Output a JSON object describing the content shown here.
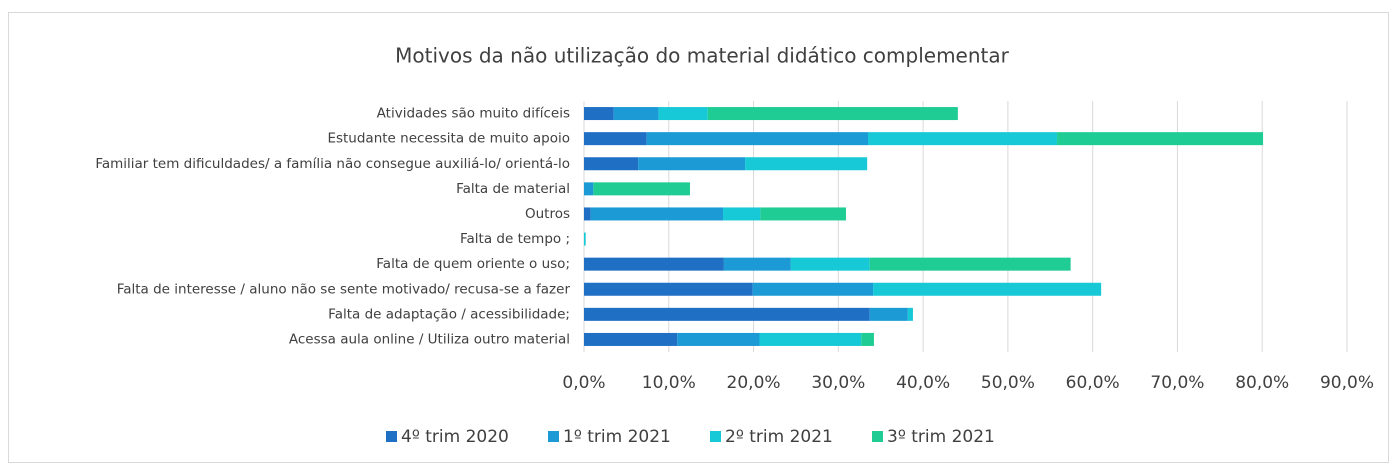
{
  "chart_data": {
    "type": "stacked-bar-horizontal",
    "title": "Motivos da não utilização do material didático complementar",
    "categories": [
      "Atividades são muito difíceis",
      "Estudante necessita de muito apoio",
      "Familiar tem dificuldades/ a família não consegue  auxiliá-lo/ orientá-lo",
      "Falta de material",
      "Outros",
      "Falta de tempo ;",
      "Falta de quem oriente o uso;",
      "Falta de interesse  / aluno não se sente motivado/ recusa-se a fazer",
      "Falta de adaptação / acessibilidade;",
      "Acessa aula online / Utiliza outro material"
    ],
    "series": [
      {
        "name": "4º trim 2020",
        "color": "#1f6fc5",
        "values": [
          3.5,
          7.4,
          6.4,
          0,
          0.8,
          0,
          16.5,
          19.9,
          33.7,
          11.0
        ]
      },
      {
        "name": "1º trim 2021",
        "color": "#1b9ad6",
        "values": [
          5.3,
          26.1,
          12.6,
          1.1,
          15.6,
          0,
          7.9,
          14.2,
          4.5,
          9.7
        ]
      },
      {
        "name": "2º trim 2021",
        "color": "#17c9d6",
        "values": [
          5.8,
          22.3,
          14.4,
          0,
          4.4,
          0.2,
          9.3,
          26.9,
          0.6,
          12.0
        ]
      },
      {
        "name": "3º trim 2021",
        "color": "#1fcc93",
        "values": [
          29.5,
          24.3,
          0,
          11.4,
          10.1,
          0,
          23.7,
          0,
          0,
          1.5
        ]
      }
    ],
    "xlim": [
      0,
      90
    ],
    "xticks": [
      {
        "value": 0,
        "label": "0,0%"
      },
      {
        "value": 10,
        "label": "10,0%"
      },
      {
        "value": 20,
        "label": "20,0%"
      },
      {
        "value": 30,
        "label": "30,0%"
      },
      {
        "value": 40,
        "label": "40,0%"
      },
      {
        "value": 50,
        "label": "50,0%"
      },
      {
        "value": 60,
        "label": "60,0%"
      },
      {
        "value": 70,
        "label": "70,0%"
      },
      {
        "value": 80,
        "label": "80,0%"
      },
      {
        "value": 90,
        "label": "90,0%"
      }
    ],
    "grid": true,
    "legend": "bottom"
  }
}
